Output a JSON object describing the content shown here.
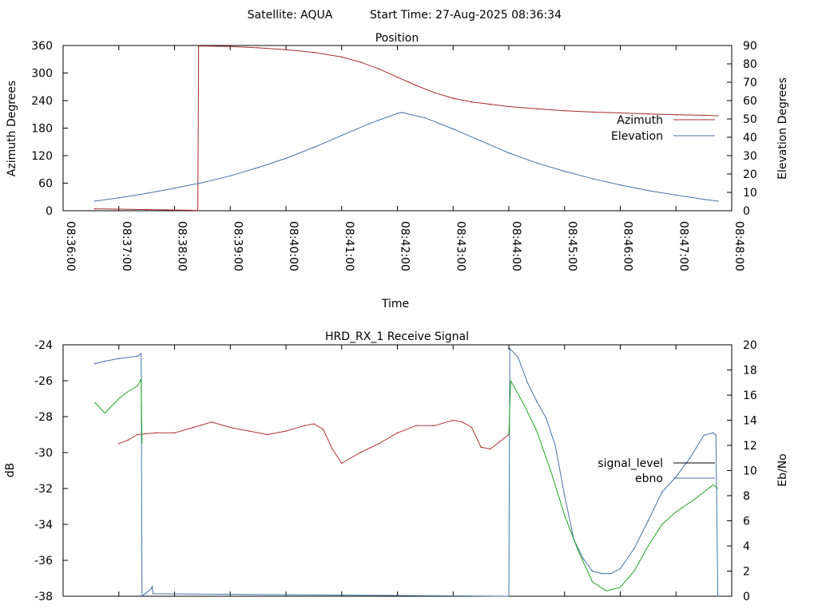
{
  "header": {
    "satellite": "Satellite: AQUA",
    "start_time": "Start Time: 27-Aug-2025 08:36:34"
  },
  "colors": {
    "azimuth": "#a52a2a",
    "elevation": "#4472a8",
    "ebno": "#1ea61e",
    "signal": "#b13232",
    "signal_legend": "#000000"
  },
  "chart_data": [
    {
      "type": "line",
      "title": "Position",
      "xlabel": "Time",
      "ylabel": "Azimuth Degrees",
      "y2label": "Elevation Degrees",
      "xlim": [
        "08:36:00",
        "08:48:00"
      ],
      "xticks": [
        "08:36:00",
        "08:37:00",
        "08:38:00",
        "08:39:00",
        "08:40:00",
        "08:41:00",
        "08:42:00",
        "08:43:00",
        "08:44:00",
        "08:45:00",
        "08:46:00",
        "08:47:00",
        "08:48:00"
      ],
      "ylim": [
        0,
        360
      ],
      "yticks": [
        0,
        60,
        120,
        180,
        240,
        300,
        360
      ],
      "y2lim": [
        0,
        90
      ],
      "y2ticks": [
        0,
        10,
        20,
        30,
        40,
        50,
        60,
        70,
        80,
        90
      ],
      "legend_position": "right",
      "series": [
        {
          "name": "Azimuth",
          "axis": "y",
          "x": [
            "08:36:34",
            "08:37:00",
            "08:37:30",
            "08:38:00",
            "08:38:15",
            "08:38:25",
            "08:38:26",
            "08:39:00",
            "08:39:30",
            "08:40:00",
            "08:40:30",
            "08:41:00",
            "08:41:20",
            "08:41:40",
            "08:42:00",
            "08:42:20",
            "08:42:40",
            "08:43:00",
            "08:43:20",
            "08:43:40",
            "08:44:00",
            "08:44:30",
            "08:45:00",
            "08:45:30",
            "08:46:00",
            "08:46:30",
            "08:47:00",
            "08:47:30",
            "08:47:45"
          ],
          "values": [
            4,
            3.5,
            2.5,
            1.5,
            1,
            0.5,
            359,
            358,
            355,
            351,
            345,
            335,
            324,
            309,
            291,
            273,
            257,
            245,
            237,
            232,
            227,
            222,
            218,
            215,
            213,
            211,
            209,
            208,
            207
          ]
        },
        {
          "name": "Elevation",
          "axis": "y2",
          "x": [
            "08:36:34",
            "08:37:00",
            "08:37:30",
            "08:38:00",
            "08:38:30",
            "08:39:00",
            "08:39:30",
            "08:40:00",
            "08:40:30",
            "08:41:00",
            "08:41:30",
            "08:42:00",
            "08:42:05",
            "08:42:30",
            "08:43:00",
            "08:43:30",
            "08:44:00",
            "08:44:30",
            "08:45:00",
            "08:45:30",
            "08:46:00",
            "08:46:30",
            "08:47:00",
            "08:47:30",
            "08:47:45"
          ],
          "values": [
            5.2,
            7,
            9.5,
            12.3,
            15.3,
            19,
            23.5,
            28.5,
            34.5,
            41,
            47.5,
            53,
            53.5,
            50.5,
            44.5,
            38,
            31.5,
            26,
            21.5,
            17.5,
            14,
            11,
            8.5,
            6.2,
            5.2
          ]
        }
      ]
    },
    {
      "type": "line",
      "title": "HRD_RX_1 Receive Signal",
      "xlabel": "",
      "ylabel": "dB",
      "y2label": "Eb/No",
      "xlim": [
        "08:36:00",
        "08:48:00"
      ],
      "ylim": [
        -38,
        -24
      ],
      "yticks": [
        -38,
        -36,
        -34,
        -32,
        -30,
        -28,
        -26,
        -24
      ],
      "y2lim": [
        0,
        20
      ],
      "y2ticks": [
        0,
        2,
        4,
        6,
        8,
        10,
        12,
        14,
        16,
        18,
        20
      ],
      "legend_position": "right",
      "series": [
        {
          "name": "signal_level",
          "axis": "y",
          "x": [
            "08:37:00",
            "08:37:10",
            "08:37:20",
            "08:37:40",
            "08:38:00",
            "08:38:20",
            "08:38:40",
            "08:39:00",
            "08:39:20",
            "08:39:40",
            "08:40:00",
            "08:40:20",
            "08:40:30",
            "08:40:40",
            "08:40:50",
            "08:41:00",
            "08:41:20",
            "08:41:40",
            "08:42:00",
            "08:42:20",
            "08:42:40",
            "08:43:00",
            "08:43:10",
            "08:43:20",
            "08:43:30",
            "08:43:40",
            "08:43:50",
            "08:44:00"
          ],
          "values": [
            -29.5,
            -29.3,
            -29,
            -28.9,
            -28.9,
            -28.6,
            -28.3,
            -28.6,
            -28.8,
            -29,
            -28.8,
            -28.5,
            -28.4,
            -28.7,
            -29.8,
            -30.6,
            -30,
            -29.5,
            -28.9,
            -28.5,
            -28.5,
            -28.2,
            -28.3,
            -28.6,
            -29.7,
            -29.8,
            -29.4,
            -29
          ],
          "legend_color": "#000000"
        },
        {
          "name": "ebno",
          "axis": "y2",
          "x": [
            "08:36:34",
            "08:36:45",
            "08:37:00",
            "08:37:20",
            "08:37:24",
            "08:37:25",
            "08:37:30",
            "08:37:35",
            "08:37:36",
            "08:37:37",
            "08:44:00",
            "08:44:01",
            "08:44:10",
            "08:44:20",
            "08:44:30",
            "08:44:40",
            "08:44:50",
            "08:45:00",
            "08:45:10",
            "08:45:20",
            "08:45:30",
            "08:45:40",
            "08:45:50",
            "08:46:00",
            "08:46:15",
            "08:46:30",
            "08:46:45",
            "08:47:00",
            "08:47:15",
            "08:47:30",
            "08:47:40",
            "08:47:43",
            "08:47:45"
          ],
          "values": [
            18.5,
            18.7,
            18.9,
            19.1,
            19.3,
            0,
            0.3,
            0.6,
            0.8,
            0.2,
            0,
            19.7,
            19,
            17,
            15.5,
            14.2,
            12,
            8,
            4.5,
            3,
            2,
            1.8,
            1.8,
            2.2,
            3.8,
            6,
            8.3,
            9.5,
            11,
            12.8,
            13,
            12.8,
            0
          ],
          "legend_color": "#4472a8"
        }
      ]
    }
  ]
}
